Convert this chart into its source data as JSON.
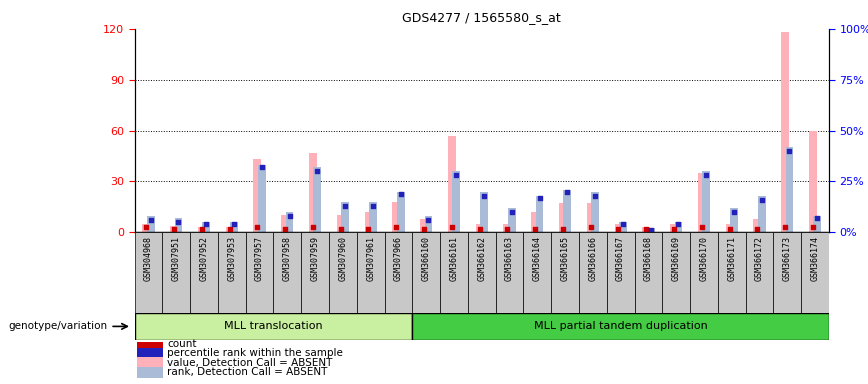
{
  "title": "GDS4277 / 1565580_s_at",
  "samples": [
    "GSM304968",
    "GSM307951",
    "GSM307952",
    "GSM307953",
    "GSM307957",
    "GSM307958",
    "GSM307959",
    "GSM307960",
    "GSM307961",
    "GSM307966",
    "GSM366160",
    "GSM366161",
    "GSM366162",
    "GSM366163",
    "GSM366164",
    "GSM366165",
    "GSM366166",
    "GSM366167",
    "GSM366168",
    "GSM366169",
    "GSM366170",
    "GSM366171",
    "GSM366172",
    "GSM366173",
    "GSM366174"
  ],
  "group1_label": "MLL translocation",
  "group2_label": "MLL partial tandem duplication",
  "group1_count": 10,
  "group2_count": 15,
  "pink_bars": [
    5,
    4,
    3,
    3,
    43,
    10,
    47,
    10,
    12,
    18,
    8,
    57,
    5,
    5,
    12,
    17,
    17,
    5,
    3,
    5,
    35,
    5,
    8,
    118,
    60
  ],
  "blue_bars": [
    8,
    7,
    5,
    5,
    33,
    10,
    32,
    15,
    15,
    20,
    8,
    30,
    20,
    12,
    18,
    21,
    20,
    5,
    2,
    5,
    30,
    12,
    18,
    42,
    8
  ],
  "red_dots": [
    3,
    2,
    2,
    2,
    3,
    2,
    3,
    2,
    2,
    3,
    2,
    3,
    2,
    2,
    2,
    2,
    3,
    2,
    2,
    2,
    3,
    2,
    2,
    3,
    3
  ],
  "dark_blue_dots": [
    6,
    5,
    4,
    4,
    32,
    8,
    30,
    13,
    13,
    19,
    6,
    28,
    18,
    10,
    17,
    20,
    18,
    4,
    1,
    4,
    28,
    10,
    16,
    40,
    7
  ],
  "ylim_left": [
    0,
    120
  ],
  "ylim_right": [
    0,
    100
  ],
  "yticks_left": [
    0,
    30,
    60,
    90,
    120
  ],
  "yticks_right": [
    0,
    25,
    50,
    75,
    100
  ],
  "pink_color": "#FFB0B8",
  "light_blue_color": "#AABBD8",
  "red_color": "#CC0000",
  "dark_blue_color": "#2222BB",
  "group1_bg": "#C8F0A0",
  "group2_bg": "#44CC44",
  "xticklabel_bg": "#C8C8C8"
}
